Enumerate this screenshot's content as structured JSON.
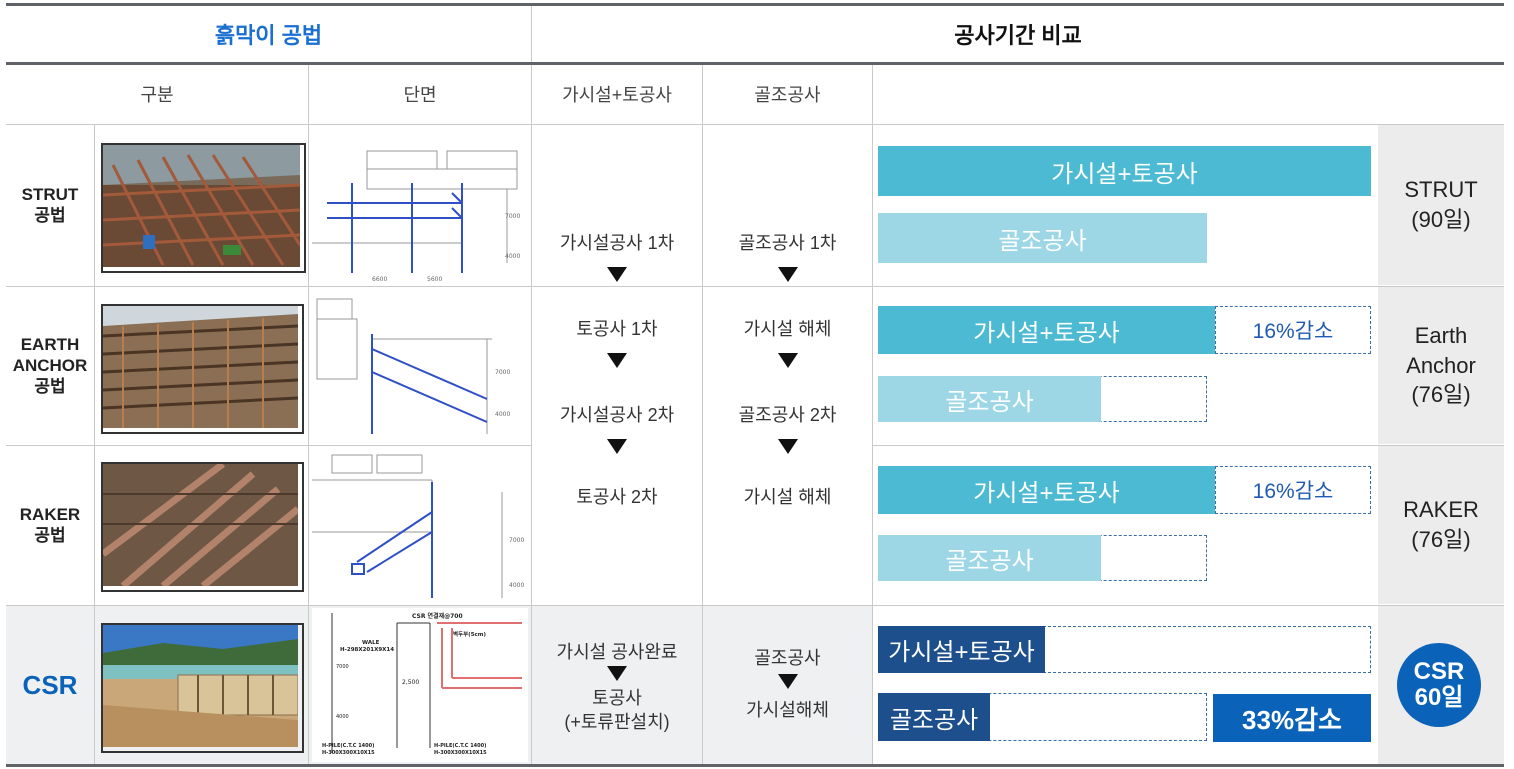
{
  "header": {
    "method_title": "흙막이 공법",
    "compare_title": "공사기간 비교"
  },
  "subheader": {
    "division": "구분",
    "section": "단면",
    "temp_earth": "가시설+토공사",
    "frame": "골조공사"
  },
  "rows": [
    {
      "label": "STRUT\n공법",
      "photo_icon": "strut-site-photo",
      "result": "STRUT\n(90일)"
    },
    {
      "label": "EARTH\nANCHOR\n공법",
      "photo_icon": "earth-anchor-site-photo",
      "result": "Earth Anchor\n(76일)"
    },
    {
      "label": "RAKER\n공법",
      "photo_icon": "raker-site-photo",
      "result": "RAKER\n(76일)"
    },
    {
      "label": "CSR",
      "photo_icon": "csr-site-photo",
      "result": "CSR\n60일"
    }
  ],
  "sequence_conventional": {
    "temp_earth": [
      "가시설공사 1차",
      "토공사 1차",
      "가시설공사 2차",
      "토공사 2차"
    ],
    "frame": [
      "골조공사 1차",
      "가시설 해체",
      "골조공사 2차",
      "가시설 해체"
    ]
  },
  "sequence_csr": {
    "temp_earth": [
      "가시설 공사완료",
      "토공사\n(+토류판설치)"
    ],
    "frame": [
      "골조공사",
      "가시설해체"
    ]
  },
  "bars": {
    "temp_earth_label": "가시설+토공사",
    "frame_label": "골조공사",
    "reduction_16": "16%감소",
    "reduction_33": "33%감소"
  },
  "durations": {
    "strut_days": 90,
    "anchor_days": 76,
    "raker_days": 76,
    "csr_days": 60
  },
  "section_labels": {
    "csr_top": "CSR 연결재@700",
    "csr_wale": "WALE",
    "csr_wale_spec": "H-298X201X9X14",
    "csr_pile_spec_l": "H-PILE(C.T.C 1400)",
    "csr_pile_dim_l": "H-300X300X10X15",
    "csr_pile_spec_r": "H-PILE(C.T.C 1400)",
    "csr_pile_dim_r": "H-300X300X10X15",
    "csr_2500": "2,500",
    "csr_side": "벽두부(5cm)",
    "csr_7000": "7000",
    "csr_4000": "4000",
    "strut_7000": "7000",
    "strut_4000": "4000",
    "strut_6600": "6600",
    "strut_5600": "5600",
    "anchor_7000": "7000",
    "anchor_4000": "4000",
    "raker_7000": "7000",
    "raker_4000": "4000"
  },
  "colors": {
    "blue_title": "#1a6fd1",
    "bar_dark_cyan": "#4bbad2",
    "bar_light_cyan": "#9dd7e6",
    "csr_navy": "#1d4f8c",
    "csr_blue": "#0a63b8",
    "result_bg": "#ececec",
    "csr_row_bg": "#eef0f2"
  }
}
